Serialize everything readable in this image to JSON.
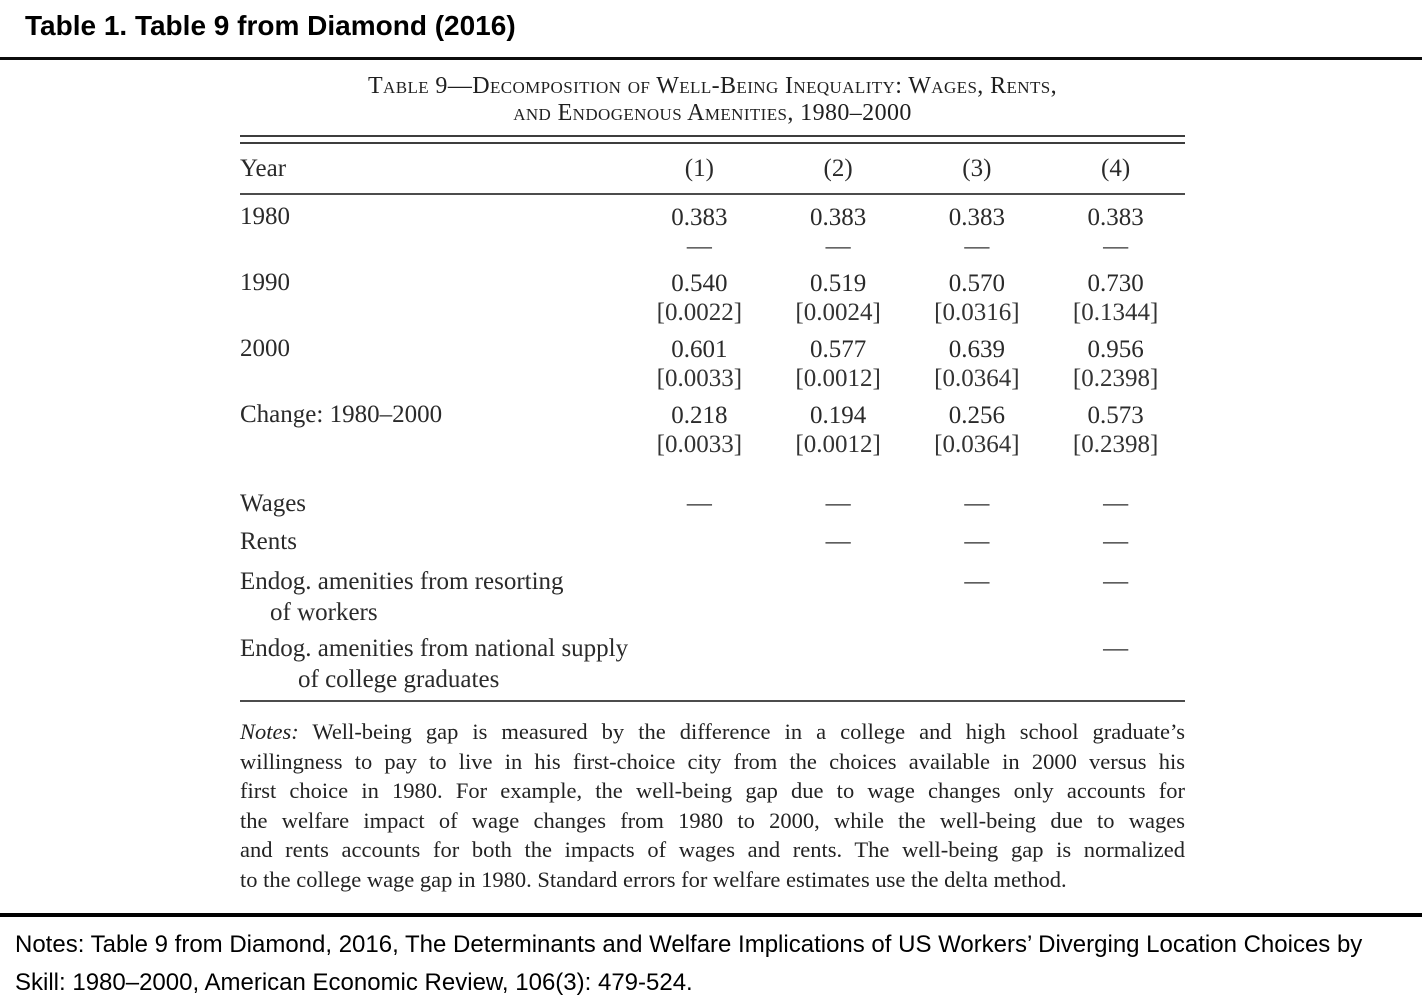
{
  "page": {
    "title": "Table 1. Table 9 from Diamond (2016)",
    "footer": "Notes: Table 9 from Diamond, 2016, The Determinants and Welfare Implications of US Workers’ Diverging Location Choices by Skill: 1980–2000, American Economic Review, 106(3): 479-524."
  },
  "table": {
    "caption_line1": "Table 9—Decomposition of Well-Being Inequality: Wages, Rents,",
    "caption_line2": "and Endogenous Amenities, 1980–2000",
    "header": {
      "year": "Year",
      "cols": [
        "(1)",
        "(2)",
        "(3)",
        "(4)"
      ]
    },
    "year_rows": [
      {
        "label": "1980",
        "values": [
          "0.383",
          "0.383",
          "0.383",
          "0.383"
        ],
        "se": [
          "—",
          "—",
          "—",
          "—"
        ]
      },
      {
        "label": "1990",
        "values": [
          "0.540",
          "0.519",
          "0.570",
          "0.730"
        ],
        "se": [
          "[0.0022]",
          "[0.0024]",
          "[0.0316]",
          "[0.1344]"
        ]
      },
      {
        "label": "2000",
        "values": [
          "0.601",
          "0.577",
          "0.639",
          "0.956"
        ],
        "se": [
          "[0.0033]",
          "[0.0012]",
          "[0.0364]",
          "[0.2398]"
        ]
      },
      {
        "label": "Change: 1980–2000",
        "values": [
          "0.218",
          "0.194",
          "0.256",
          "0.573"
        ],
        "se": [
          "[0.0033]",
          "[0.0012]",
          "[0.0364]",
          "[0.2398]"
        ]
      }
    ],
    "component_rows": [
      {
        "label_line1": "Wages",
        "label_line2": "",
        "marks": [
          "—",
          "—",
          "—",
          "—"
        ]
      },
      {
        "label_line1": "Rents",
        "label_line2": "",
        "marks": [
          "",
          "—",
          "—",
          "—"
        ]
      },
      {
        "label_line1": "Endog. amenities from resorting",
        "label_line2": "of workers",
        "marks": [
          "",
          "",
          "—",
          "—"
        ]
      },
      {
        "label_line1": "Endog. amenities from national supply",
        "label_line2": "of college graduates",
        "marks": [
          "",
          "",
          "",
          "—"
        ]
      }
    ],
    "notes_label": "Notes:",
    "notes_lines": [
      " Well-being gap is measured by the difference in a college and high school graduate’s",
      "willingness to pay to live in his first-choice city from the choices available in 2000 versus his",
      "first choice in 1980. For example, the well-being gap due to wage changes only accounts for",
      "the welfare impact of wage changes from 1980 to 2000, while the well-being due to wages",
      "and rents accounts for both the impacts of wages and rents. The well-being gap is normalized",
      "to the college wage gap in 1980. Standard errors for welfare estimates use the delta method."
    ]
  },
  "chart_data": {
    "type": "table",
    "title": "Table 9—Decomposition of Well-Being Inequality: Wages, Rents, and Endogenous Amenities, 1980–2000",
    "columns": [
      "Year",
      "(1)",
      "(2)",
      "(3)",
      "(4)"
    ],
    "rows": [
      {
        "year": "1980",
        "values": [
          0.383,
          0.383,
          0.383,
          0.383
        ],
        "standard_errors": [
          null,
          null,
          null,
          null
        ]
      },
      {
        "year": "1990",
        "values": [
          0.54,
          0.519,
          0.57,
          0.73
        ],
        "standard_errors": [
          0.0022,
          0.0024,
          0.0316,
          0.1344
        ]
      },
      {
        "year": "2000",
        "values": [
          0.601,
          0.577,
          0.639,
          0.956
        ],
        "standard_errors": [
          0.0033,
          0.0012,
          0.0364,
          0.2398
        ]
      },
      {
        "year": "Change: 1980–2000",
        "values": [
          0.218,
          0.194,
          0.256,
          0.573
        ],
        "standard_errors": [
          0.0033,
          0.0012,
          0.0364,
          0.2398
        ]
      }
    ],
    "included_components": {
      "Wages": [
        true,
        true,
        true,
        true
      ],
      "Rents": [
        false,
        true,
        true,
        true
      ],
      "Endog. amenities from resorting of workers": [
        false,
        false,
        true,
        true
      ],
      "Endog. amenities from national supply of college graduates": [
        false,
        false,
        false,
        true
      ]
    }
  }
}
